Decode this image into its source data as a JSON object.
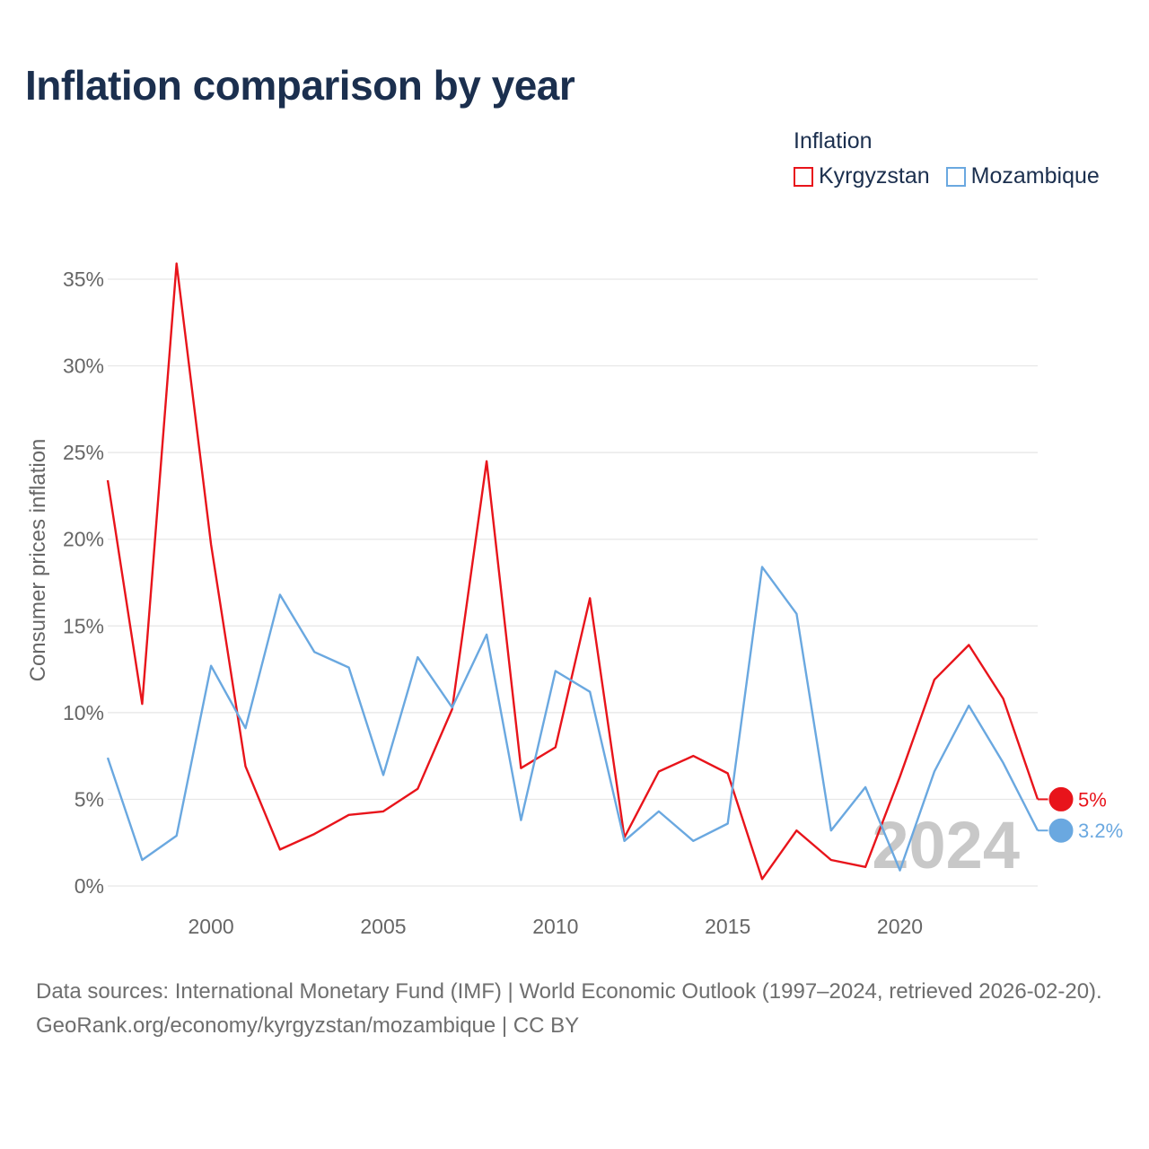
{
  "title": "Inflation comparison by year",
  "legend": {
    "title": "Inflation",
    "items": [
      {
        "label": "Kyrgyzstan",
        "color": "#e8141b"
      },
      {
        "label": "Mozambique",
        "color": "#6aa8e0"
      }
    ]
  },
  "source": {
    "line1": "Data sources: International Monetary Fund (IMF) | World Economic Outlook (1997–2024, retrieved 2026-02-20).",
    "line2": "GeoRank.org/economy/kyrgyzstan/mozambique | CC BY"
  },
  "chart_data": {
    "type": "line",
    "title": "Inflation comparison by year",
    "xlabel": "",
    "ylabel": "Consumer prices inflation",
    "xlim": [
      1997,
      2024
    ],
    "ylim": [
      0,
      36
    ],
    "x_ticks": [
      2000,
      2005,
      2010,
      2015,
      2020
    ],
    "y_ticks": [
      0,
      5,
      10,
      15,
      20,
      25,
      30,
      35
    ],
    "y_tick_labels": [
      "0%",
      "5%",
      "10%",
      "15%",
      "20%",
      "25%",
      "30%",
      "35%"
    ],
    "grid": true,
    "year_watermark": "2024",
    "x": [
      1997,
      1998,
      1999,
      2000,
      2001,
      2002,
      2003,
      2004,
      2005,
      2006,
      2007,
      2008,
      2009,
      2010,
      2011,
      2012,
      2013,
      2014,
      2015,
      2016,
      2017,
      2018,
      2019,
      2020,
      2021,
      2022,
      2023,
      2024
    ],
    "series": [
      {
        "name": "Kyrgyzstan",
        "color": "#e8141b",
        "end_label": "5%",
        "values": [
          23.4,
          10.5,
          35.9,
          19.7,
          6.9,
          2.1,
          3.0,
          4.1,
          4.3,
          5.6,
          10.2,
          24.5,
          6.8,
          8.0,
          16.6,
          2.8,
          6.6,
          7.5,
          6.5,
          0.4,
          3.2,
          1.5,
          1.1,
          6.3,
          11.9,
          13.9,
          10.8,
          5.0
        ]
      },
      {
        "name": "Mozambique",
        "color": "#6aa8e0",
        "end_label": "3.2%",
        "values": [
          7.4,
          1.5,
          2.9,
          12.7,
          9.1,
          16.8,
          13.5,
          12.6,
          6.4,
          13.2,
          10.3,
          14.5,
          3.8,
          12.4,
          11.2,
          2.6,
          4.3,
          2.6,
          3.6,
          18.4,
          15.7,
          3.2,
          5.7,
          0.9,
          6.6,
          10.4,
          7.1,
          3.2
        ]
      }
    ]
  }
}
